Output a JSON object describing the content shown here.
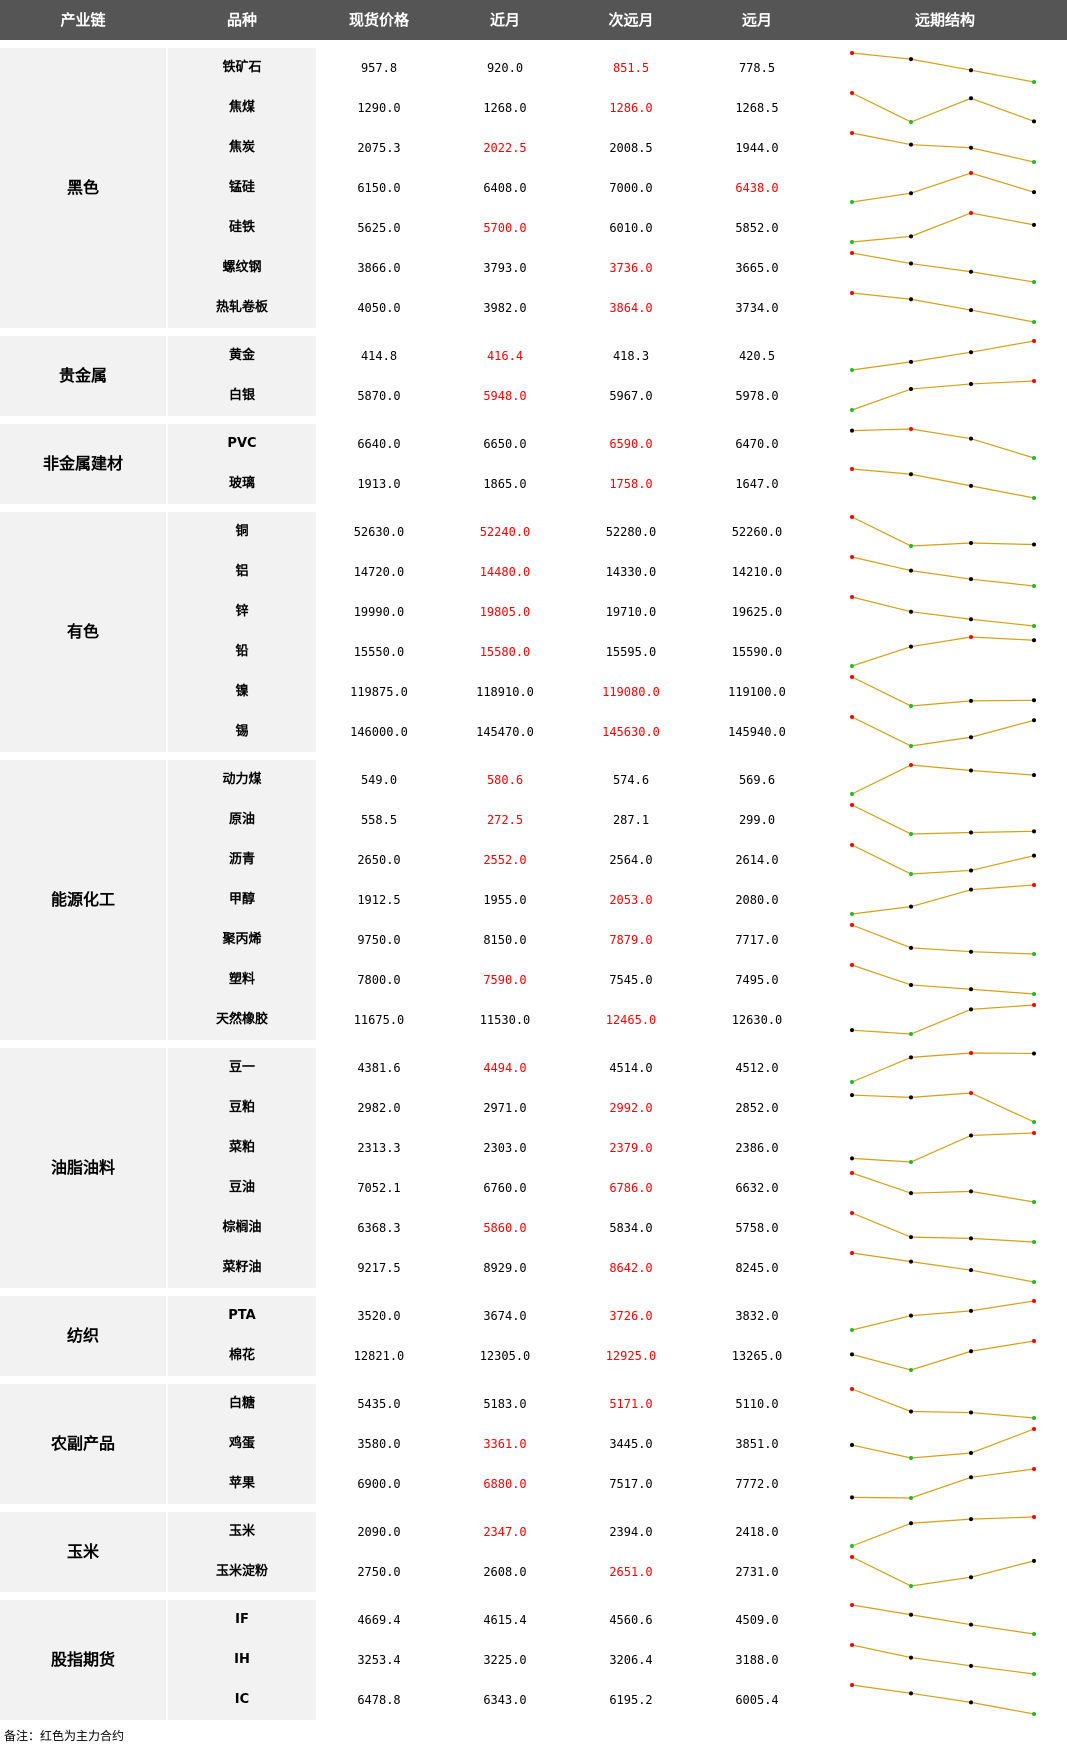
{
  "colors": {
    "header_bg": "#555555",
    "main_contract": "#ff0000",
    "up": "#ff0000",
    "down": "#22bb22",
    "neutral": "#000000",
    "line": "#d4a017"
  },
  "header": {
    "col_chain": "产业链",
    "col_name": "品种",
    "col_spot": "现货价格",
    "col_near": "近月",
    "col_mid": "次远月",
    "col_far": "远月",
    "col_curve": "远期结构"
  },
  "groups": [
    {
      "name": "黑色",
      "rows": [
        {
          "name": "铁矿石",
          "spot": "957.8",
          "near": "920.0",
          "mid": "851.5",
          "far": "778.5",
          "main": "mid"
        },
        {
          "name": "焦煤",
          "spot": "1290.0",
          "near": "1268.0",
          "mid": "1286.0",
          "far": "1268.5",
          "main": "mid"
        },
        {
          "name": "焦炭",
          "spot": "2075.3",
          "near": "2022.5",
          "mid": "2008.5",
          "far": "1944.0",
          "main": "near"
        },
        {
          "name": "锰硅",
          "spot": "6150.0",
          "near": "6408.0",
          "mid": "7000.0",
          "far": "6438.0",
          "main": "far"
        },
        {
          "name": "硅铁",
          "spot": "5625.0",
          "near": "5700.0",
          "mid": "6010.0",
          "far": "5852.0",
          "main": "near"
        },
        {
          "name": "螺纹钢",
          "spot": "3866.0",
          "near": "3793.0",
          "mid": "3736.0",
          "far": "3665.0",
          "main": "mid"
        },
        {
          "name": "热轧卷板",
          "spot": "4050.0",
          "near": "3982.0",
          "mid": "3864.0",
          "far": "3734.0",
          "main": "mid"
        }
      ]
    },
    {
      "name": "贵金属",
      "rows": [
        {
          "name": "黄金",
          "spot": "414.8",
          "near": "416.4",
          "mid": "418.3",
          "far": "420.5",
          "main": "near"
        },
        {
          "name": "白银",
          "spot": "5870.0",
          "near": "5948.0",
          "mid": "5967.0",
          "far": "5978.0",
          "main": "near"
        }
      ]
    },
    {
      "name": "非金属建材",
      "rows": [
        {
          "name": "PVC",
          "spot": "6640.0",
          "near": "6650.0",
          "mid": "6590.0",
          "far": "6470.0",
          "main": "mid"
        },
        {
          "name": "玻璃",
          "spot": "1913.0",
          "near": "1865.0",
          "mid": "1758.0",
          "far": "1647.0",
          "main": "mid"
        }
      ]
    },
    {
      "name": "有色",
      "rows": [
        {
          "name": "铜",
          "spot": "52630.0",
          "near": "52240.0",
          "mid": "52280.0",
          "far": "52260.0",
          "main": "near"
        },
        {
          "name": "铝",
          "spot": "14720.0",
          "near": "14480.0",
          "mid": "14330.0",
          "far": "14210.0",
          "main": "near"
        },
        {
          "name": "锌",
          "spot": "19990.0",
          "near": "19805.0",
          "mid": "19710.0",
          "far": "19625.0",
          "main": "near"
        },
        {
          "name": "铅",
          "spot": "15550.0",
          "near": "15580.0",
          "mid": "15595.0",
          "far": "15590.0",
          "main": "near"
        },
        {
          "name": "镍",
          "spot": "119875.0",
          "near": "118910.0",
          "mid": "119080.0",
          "far": "119100.0",
          "main": "mid"
        },
        {
          "name": "锡",
          "spot": "146000.0",
          "near": "145470.0",
          "mid": "145630.0",
          "far": "145940.0",
          "main": "mid"
        }
      ]
    },
    {
      "name": "能源化工",
      "rows": [
        {
          "name": "动力煤",
          "spot": "549.0",
          "near": "580.6",
          "mid": "574.6",
          "far": "569.6",
          "main": "near"
        },
        {
          "name": "原油",
          "spot": "558.5",
          "near": "272.5",
          "mid": "287.1",
          "far": "299.0",
          "main": "near"
        },
        {
          "name": "沥青",
          "spot": "2650.0",
          "near": "2552.0",
          "mid": "2564.0",
          "far": "2614.0",
          "main": "near"
        },
        {
          "name": "甲醇",
          "spot": "1912.5",
          "near": "1955.0",
          "mid": "2053.0",
          "far": "2080.0",
          "main": "mid"
        },
        {
          "name": "聚丙烯",
          "spot": "9750.0",
          "near": "8150.0",
          "mid": "7879.0",
          "far": "7717.0",
          "main": "mid"
        },
        {
          "name": "塑料",
          "spot": "7800.0",
          "near": "7590.0",
          "mid": "7545.0",
          "far": "7495.0",
          "main": "near"
        },
        {
          "name": "天然橡胶",
          "spot": "11675.0",
          "near": "11530.0",
          "mid": "12465.0",
          "far": "12630.0",
          "main": "mid"
        }
      ]
    },
    {
      "name": "油脂油料",
      "rows": [
        {
          "name": "豆一",
          "spot": "4381.6",
          "near": "4494.0",
          "mid": "4514.0",
          "far": "4512.0",
          "main": "near"
        },
        {
          "name": "豆粕",
          "spot": "2982.0",
          "near": "2971.0",
          "mid": "2992.0",
          "far": "2852.0",
          "main": "mid"
        },
        {
          "name": "菜粕",
          "spot": "2313.3",
          "near": "2303.0",
          "mid": "2379.0",
          "far": "2386.0",
          "main": "mid"
        },
        {
          "name": "豆油",
          "spot": "7052.1",
          "near": "6760.0",
          "mid": "6786.0",
          "far": "6632.0",
          "main": "mid"
        },
        {
          "name": "棕榈油",
          "spot": "6368.3",
          "near": "5860.0",
          "mid": "5834.0",
          "far": "5758.0",
          "main": "near"
        },
        {
          "name": "菜籽油",
          "spot": "9217.5",
          "near": "8929.0",
          "mid": "8642.0",
          "far": "8245.0",
          "main": "mid"
        }
      ]
    },
    {
      "name": "纺织",
      "rows": [
        {
          "name": "PTA",
          "spot": "3520.0",
          "near": "3674.0",
          "mid": "3726.0",
          "far": "3832.0",
          "main": "mid"
        },
        {
          "name": "棉花",
          "spot": "12821.0",
          "near": "12305.0",
          "mid": "12925.0",
          "far": "13265.0",
          "main": "mid"
        }
      ]
    },
    {
      "name": "农副产品",
      "rows": [
        {
          "name": "白糖",
          "spot": "5435.0",
          "near": "5183.0",
          "mid": "5171.0",
          "far": "5110.0",
          "main": "mid"
        },
        {
          "name": "鸡蛋",
          "spot": "3580.0",
          "near": "3361.0",
          "mid": "3445.0",
          "far": "3851.0",
          "main": "near"
        },
        {
          "name": "苹果",
          "spot": "6900.0",
          "near": "6880.0",
          "mid": "7517.0",
          "far": "7772.0",
          "main": "near"
        }
      ]
    },
    {
      "name": "玉米",
      "rows": [
        {
          "name": "玉米",
          "spot": "2090.0",
          "near": "2347.0",
          "mid": "2394.0",
          "far": "2418.0",
          "main": "near"
        },
        {
          "name": "玉米淀粉",
          "spot": "2750.0",
          "near": "2608.0",
          "mid": "2651.0",
          "far": "2731.0",
          "main": "mid"
        }
      ]
    },
    {
      "name": "股指期货",
      "rows": [
        {
          "name": "IF",
          "spot": "4669.4",
          "near": "4615.4",
          "mid": "4560.6",
          "far": "4509.0",
          "main": ""
        },
        {
          "name": "IH",
          "spot": "3253.4",
          "near": "3225.0",
          "mid": "3206.4",
          "far": "3188.0",
          "main": ""
        },
        {
          "name": "IC",
          "spot": "6478.8",
          "near": "6343.0",
          "mid": "6195.2",
          "far": "6005.4",
          "main": ""
        }
      ]
    }
  ],
  "footer": {
    "note": "备注：红色为主力合约"
  }
}
